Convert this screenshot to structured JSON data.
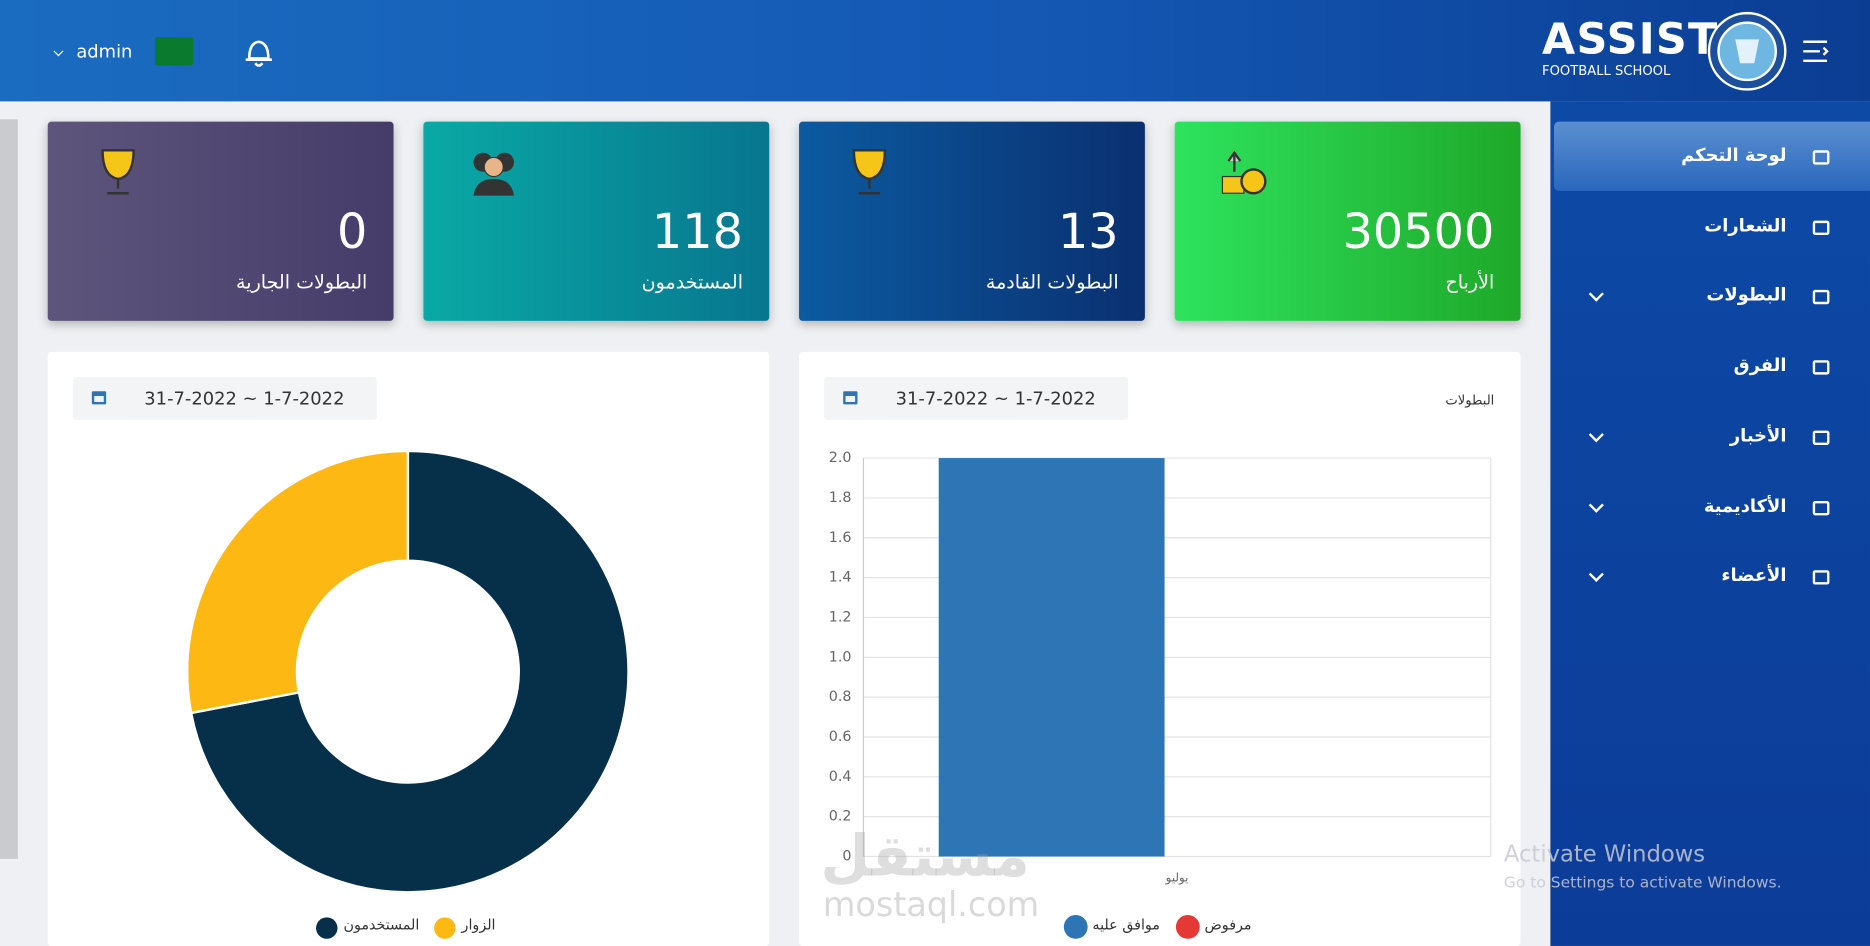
{
  "header": {
    "brand": "ASSIST",
    "brand_sub": "FOOTBALL SCHOOL",
    "user": "admin"
  },
  "sidebar": {
    "items": [
      "لوحة التحكم",
      "الشعارات",
      "البطولات",
      "الفرق",
      "الأخبار",
      "الأكاديمية",
      "الأعضاء"
    ]
  },
  "stats": [
    {
      "label": "الأرباح",
      "value": 30500
    },
    {
      "label": "البطولات القادمة",
      "value": 13
    },
    {
      "label": "المستخدمون",
      "value": 118
    },
    {
      "label": "البطولات الجارية",
      "value": 0
    }
  ],
  "chart_data": [
    {
      "type": "bar",
      "title": "البطولات",
      "date_range": "31-7-2022 ~ 1-7-2022",
      "categories": [
        "يوليو"
      ],
      "series": [
        {
          "name": "موافق عليه",
          "color": "#2e75b6",
          "values": [
            2
          ]
        },
        {
          "name": "مرفوض",
          "color": "#e53935",
          "values": [
            0
          ]
        }
      ],
      "ylim": [
        0,
        2
      ],
      "yticks": [
        0,
        0.2,
        0.4,
        0.6,
        0.8,
        {
          "value": 1,
          "label": "1.0"
        },
        1.2,
        1.4,
        1.6,
        1.8,
        {
          "value": 2,
          "label": "2.0"
        }
      ],
      "grid": true
    },
    {
      "type": "pie",
      "date_range": "31-7-2022 ~ 1-7-2022",
      "categories": [
        "المستخدمون",
        "الزوار"
      ],
      "values": [
        72,
        28
      ],
      "colors": [
        "#062f4a",
        "#fdb813"
      ],
      "donut": true
    }
  ],
  "watermark": {
    "brand_ar": "مستقل",
    "brand_en": "mostaql.com"
  },
  "os_notice": {
    "title": "Activate Windows",
    "text": "Go to Settings to activate Windows."
  }
}
